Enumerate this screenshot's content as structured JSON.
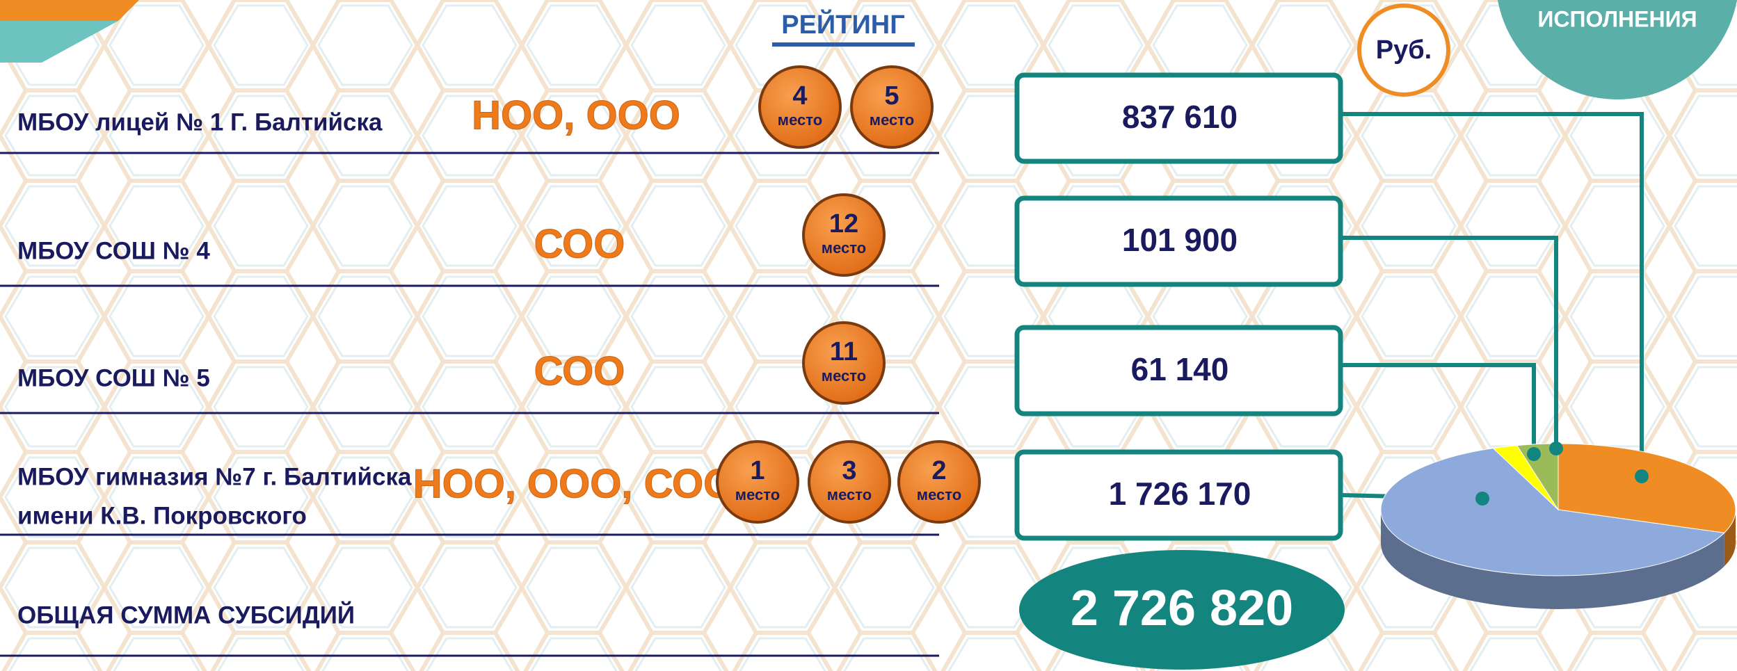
{
  "header": {
    "rating": "РЕЙТИНГ",
    "currency": "Руб.",
    "badge": "ИСПОЛНЕНИЯ"
  },
  "rows": [
    {
      "name": [
        "МБОУ лицей № 1 Г. Балтийска"
      ],
      "levels": "НОО, ООО",
      "ranks": [
        {
          "place": "4",
          "label": "место"
        },
        {
          "place": "5",
          "label": "место"
        }
      ],
      "amount": "837 610",
      "color": "#ef8c24"
    },
    {
      "name": [
        "МБОУ СОШ № 4"
      ],
      "levels": "СОО",
      "ranks": [
        {
          "place": "12",
          "label": "место"
        }
      ],
      "amount": "101 900",
      "color": "#9bbb59"
    },
    {
      "name": [
        "МБОУ СОШ № 5"
      ],
      "levels": "СОО",
      "ranks": [
        {
          "place": "11",
          "label": "место"
        }
      ],
      "amount": "61 140",
      "color": "#ffff00"
    },
    {
      "name": [
        "МБОУ гимназия №7 г. Балтийска",
        "имени К.В. Покровского"
      ],
      "levels": "НОО, ООО, СОО",
      "ranks": [
        {
          "place": "1",
          "label": "место"
        },
        {
          "place": "3",
          "label": "место"
        },
        {
          "place": "2",
          "label": "место"
        }
      ],
      "amount": "1 726 170",
      "color": "#8ea9db"
    }
  ],
  "total": {
    "label": "ОБЩАЯ СУММА СУБСИДИЙ",
    "amount": "2 726 820"
  }
}
